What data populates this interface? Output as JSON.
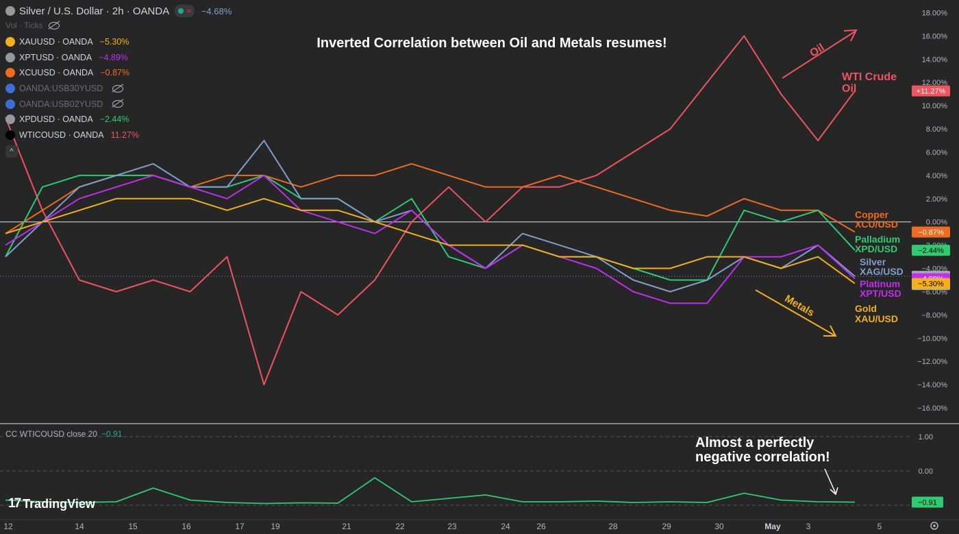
{
  "header": {
    "title": "Silver / U.S. Dollar · 2h · OANDA",
    "change": "−4.68%",
    "eq_symbol": "≈",
    "vol_label": "Vol · Ticks"
  },
  "legend": [
    {
      "name": "XAUUSD · OANDA",
      "value": "−5.30%",
      "color": "#f5b018",
      "icon_color": "#f5b018",
      "hidden": false
    },
    {
      "name": "XPTUSD · OANDA",
      "value": "−4.89%",
      "color": "#c12ef2",
      "icon_color": "#9598a1",
      "hidden": false
    },
    {
      "name": "XCUUSD · OANDA",
      "value": "−0.87%",
      "color": "#ef6c1f",
      "icon_color": "#ef6c1f",
      "hidden": false
    },
    {
      "name": "OANDA:USB30YUSD",
      "value": "",
      "color": "#6a6d78",
      "icon_color": "#3b6fd6",
      "hidden": true
    },
    {
      "name": "OANDA:USB02YUSD",
      "value": "",
      "color": "#6a6d78",
      "icon_color": "#3b6fd6",
      "hidden": true
    },
    {
      "name": "XPDUSD · OANDA",
      "value": "−2.44%",
      "color": "#2ecc71",
      "icon_color": "#9598a1",
      "hidden": false
    },
    {
      "name": "WTICOUSD · OANDA",
      "value": "11.27%",
      "color": "#f0545e",
      "icon_color": "#000000",
      "hidden": false
    }
  ],
  "collapse_icon": "^",
  "annotations": {
    "headline": "Inverted Correlation between Oil and Metals resumes!",
    "oil_arrow": "Oil",
    "oil_label_1": "WTI Crude",
    "oil_label_2": "Oil",
    "metals_arrow": "Metals",
    "copper_1": "Copper",
    "copper_2": "XCU/USD",
    "palladium_1": "Palladium",
    "palladium_2": "XPD/USD",
    "silver_1": "Silver",
    "silver_2": "XAG/USD",
    "platinum_1": "Platinum",
    "platinum_2": "XPT/USD",
    "gold_1": "Gold",
    "gold_2": "XAU/USD",
    "cc_note_1": "Almost a perfectly",
    "cc_note_2": "negative correlation!"
  },
  "price_badges": [
    {
      "text": "+11.27%",
      "bg": "#f0545e",
      "value": 11.27
    },
    {
      "text": "−0.87%",
      "bg": "#ef6c1f",
      "value": -0.87
    },
    {
      "text": "−2.44%",
      "bg": "#2ecc71",
      "value": -2.44
    },
    {
      "text": "−4.68%",
      "sub": "03:02",
      "bg": "#a3aab6",
      "value": -4.68
    },
    {
      "text": "−4.89%",
      "bg": "#c12ef2",
      "value": -4.89
    },
    {
      "text": "−5.30%",
      "bg": "#f5b018",
      "value": -5.3
    }
  ],
  "cc_indicator": {
    "label": "CC  WTICOUSD close 20",
    "value": "−0.91",
    "badge": "−0.91",
    "badge_bg": "#2ecc71",
    "y_ticks": [
      "1.00",
      "0.00"
    ]
  },
  "logo_text": "TradingView",
  "settings_icon": "gear-icon",
  "chart_data": {
    "type": "line",
    "y_unit": "%",
    "ylim": [
      -17,
      18.5
    ],
    "y_ticks": [
      "18.00%",
      "16.00%",
      "14.00%",
      "12.00%",
      "10.00%",
      "8.00%",
      "6.00%",
      "4.00%",
      "2.00%",
      "0.00%",
      "−2.00%",
      "−4.00%",
      "−6.00%",
      "−8.00%",
      "−10.00%",
      "−12.00%",
      "−14.00%",
      "−16.00%"
    ],
    "x_ticks": [
      "12",
      "14",
      "15",
      "16",
      "17",
      "19",
      "21",
      "22",
      "23",
      "24",
      "26",
      "28",
      "29",
      "30",
      "May",
      "3",
      "5"
    ],
    "x": [
      12,
      13,
      14,
      15,
      16,
      17,
      18,
      19,
      20,
      21,
      22,
      23,
      24,
      25,
      26,
      27,
      28,
      29,
      30,
      31,
      32,
      33,
      34,
      35
    ],
    "series": [
      {
        "name": "WTI Crude Oil",
        "color": "#f0545e",
        "values": [
          9,
          1,
          -5,
          -6,
          -5,
          -6,
          -3,
          -14,
          -6,
          -8,
          -5,
          0,
          3,
          0,
          3,
          3,
          4,
          6,
          8,
          12,
          16,
          11,
          7,
          11.27
        ]
      },
      {
        "name": "Copper XCU/USD",
        "color": "#ef6c1f",
        "values": [
          -1,
          1,
          3,
          4,
          4,
          3,
          4,
          4,
          3,
          4,
          4,
          5,
          4,
          3,
          3,
          4,
          3,
          2,
          1,
          0.5,
          2,
          1,
          1,
          -0.87
        ]
      },
      {
        "name": "Palladium XPD/USD",
        "color": "#2ecc71",
        "values": [
          -3,
          3,
          4,
          4,
          4,
          3,
          3,
          4,
          2,
          2,
          0,
          2,
          -3,
          -4,
          -2,
          -3,
          -3,
          -4,
          -5,
          -5,
          1,
          0,
          1,
          -2.44
        ]
      },
      {
        "name": "Silver XAG/USD",
        "color": "#7f9fcd",
        "values": [
          -3,
          0,
          3,
          4,
          5,
          3,
          3,
          7,
          2,
          2,
          0,
          1,
          -2,
          -4,
          -1,
          -2,
          -3,
          -5,
          -6,
          -5,
          -3,
          -4,
          -2,
          -4.68
        ]
      },
      {
        "name": "Platinum XPT/USD",
        "color": "#c12ef2",
        "values": [
          -2,
          0,
          2,
          3,
          4,
          3,
          2,
          4,
          1,
          0,
          -1,
          1,
          -2,
          -4,
          -2,
          -3,
          -4,
          -6,
          -7,
          -7,
          -3,
          -3,
          -2,
          -4.89
        ]
      },
      {
        "name": "Gold XAU/USD",
        "color": "#f5b018",
        "values": [
          -1,
          0,
          1,
          2,
          2,
          2,
          1,
          2,
          1,
          1,
          0,
          -1,
          -2,
          -2,
          -2,
          -3,
          -3,
          -4,
          -4,
          -3,
          -3,
          -4,
          -3,
          -5.3
        ]
      }
    ],
    "cc": {
      "ylim": [
        -1.1,
        1.1
      ],
      "values": [
        -0.85,
        -0.9,
        -0.92,
        -0.9,
        -0.5,
        -0.85,
        -0.92,
        -0.95,
        -0.93,
        -0.94,
        -0.2,
        -0.9,
        -0.8,
        -0.7,
        -0.9,
        -0.9,
        -0.88,
        -0.92,
        -0.9,
        -0.92,
        -0.65,
        -0.85,
        -0.9,
        -0.91
      ]
    }
  }
}
